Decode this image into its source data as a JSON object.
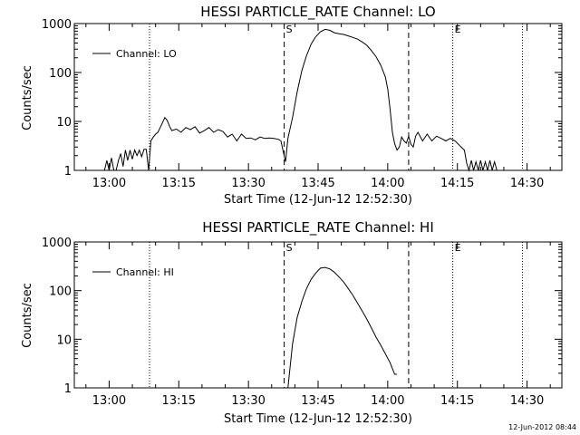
{
  "colors": {
    "background": "#ffffff",
    "foreground": "#000000"
  },
  "timestamp": "12-Jun-2012 08:44",
  "chart_data": [
    {
      "type": "line",
      "title": "HESSI PARTICLE_RATE Channel: LO",
      "xlabel": "Start Time (12-Jun-12 12:52:30)",
      "ylabel": "Counts/sec",
      "yscale": "log",
      "ylim": [
        1,
        1000
      ],
      "xlim_minutes_after_start": [
        0,
        105
      ],
      "x_ticks": [
        {
          "minute": 7.5,
          "label": "13:00"
        },
        {
          "minute": 22.5,
          "label": "13:15"
        },
        {
          "minute": 37.5,
          "label": "13:30"
        },
        {
          "minute": 52.5,
          "label": "13:45"
        },
        {
          "minute": 67.5,
          "label": "14:00"
        },
        {
          "minute": 82.5,
          "label": "14:15"
        },
        {
          "minute": 97.5,
          "label": "14:30"
        }
      ],
      "y_ticks": [
        {
          "value": 1,
          "label": "1"
        },
        {
          "value": 10,
          "label": "10"
        },
        {
          "value": 100,
          "label": "100"
        },
        {
          "value": 1000,
          "label": "1000"
        }
      ],
      "legend": {
        "label": "Channel: LO",
        "position": "top-left"
      },
      "markers": [
        {
          "label": "",
          "minute": 16.2,
          "style": "dotted"
        },
        {
          "label": "S",
          "minute": 45.2,
          "style": "dashed"
        },
        {
          "label": "",
          "minute": 72.0,
          "style": "dashed"
        },
        {
          "label": "E",
          "minute": 81.5,
          "style": "dotted"
        },
        {
          "label": "",
          "minute": 96.5,
          "style": "dotted"
        }
      ],
      "series": [
        {
          "name": "Channel: LO",
          "x": [
            6.5,
            7.0,
            7.5,
            8.0,
            8.5,
            9.0,
            9.5,
            10.0,
            10.5,
            11.0,
            11.5,
            12.0,
            12.5,
            13.0,
            13.5,
            14.0,
            14.5,
            15.0,
            15.5,
            16.0,
            16.5,
            17.0,
            17.5,
            18.0,
            18.5,
            19.0,
            19.5,
            20.0,
            20.5,
            21.0,
            22.0,
            23.0,
            24.0,
            25.0,
            26.0,
            27.0,
            28.0,
            29.0,
            30.0,
            31.0,
            32.0,
            33.0,
            34.0,
            35.0,
            36.0,
            37.0,
            38.0,
            39.0,
            40.0,
            41.0,
            42.0,
            43.0,
            44.0,
            44.5,
            45.0,
            45.5,
            46.0,
            47.0,
            48.0,
            49.0,
            50.0,
            51.0,
            52.0,
            53.0,
            54.0,
            55.0,
            56.0,
            57.0,
            58.0,
            59.0,
            60.0,
            61.0,
            62.0,
            63.0,
            64.0,
            65.0,
            66.0,
            67.0,
            67.5,
            68.0,
            68.5,
            69.0,
            69.5,
            70.0,
            70.5,
            71.0,
            71.5,
            72.0,
            72.5,
            73.0,
            73.5,
            74.0,
            75.0,
            76.0,
            77.0,
            78.0,
            79.0,
            80.0,
            81.0,
            82.0,
            83.0,
            84.0,
            84.5,
            85.0,
            85.5,
            86.0,
            86.5,
            87.0,
            87.5,
            88.0,
            88.5,
            89.0,
            89.5,
            90.0,
            90.5,
            91.0
          ],
          "values": [
            1,
            1.6,
            1,
            1.8,
            1,
            1,
            1.6,
            2.2,
            1.2,
            2.6,
            1.6,
            2.6,
            1.7,
            2.6,
            2.0,
            2.6,
            1.9,
            2.7,
            2.7,
            1.0,
            4.0,
            4.8,
            5.5,
            6.0,
            7.5,
            9.5,
            12.0,
            10.5,
            8.0,
            6.5,
            7.0,
            6.0,
            7.5,
            6.8,
            7.8,
            5.8,
            6.5,
            7.5,
            6.0,
            6.8,
            6.2,
            4.8,
            5.5,
            4.0,
            5.5,
            4.5,
            4.6,
            4.2,
            4.8,
            4.5,
            4.6,
            4.5,
            4.3,
            4.0,
            2.4,
            1.5,
            4.5,
            12,
            40,
            110,
            220,
            380,
            540,
            680,
            760,
            730,
            650,
            620,
            600,
            560,
            520,
            480,
            420,
            360,
            280,
            210,
            140,
            80,
            45,
            18,
            6.0,
            3.5,
            2.6,
            3.0,
            4.8,
            4.0,
            3.6,
            5.0,
            3.4,
            3.0,
            5.0,
            6.0,
            4.0,
            5.5,
            4.0,
            5.0,
            4.5,
            4.0,
            4.5,
            4.0,
            3.2,
            2.6,
            1.4,
            1.0,
            1.6,
            1.0,
            1.5,
            1.0,
            1.6,
            1.0,
            1.5,
            1.0,
            1.6,
            1.0,
            1.5,
            1.0
          ]
        }
      ]
    },
    {
      "type": "line",
      "title": "HESSI PARTICLE_RATE Channel: HI",
      "xlabel": "Start Time (12-Jun-12 12:52:30)",
      "ylabel": "Counts/sec",
      "yscale": "log",
      "ylim": [
        1,
        1000
      ],
      "xlim_minutes_after_start": [
        0,
        105
      ],
      "x_ticks": [
        {
          "minute": 7.5,
          "label": "13:00"
        },
        {
          "minute": 22.5,
          "label": "13:15"
        },
        {
          "minute": 37.5,
          "label": "13:30"
        },
        {
          "minute": 52.5,
          "label": "13:45"
        },
        {
          "minute": 67.5,
          "label": "14:00"
        },
        {
          "minute": 82.5,
          "label": "14:15"
        },
        {
          "minute": 97.5,
          "label": "14:30"
        }
      ],
      "y_ticks": [
        {
          "value": 1,
          "label": "1"
        },
        {
          "value": 10,
          "label": "10"
        },
        {
          "value": 100,
          "label": "100"
        },
        {
          "value": 1000,
          "label": "1000"
        }
      ],
      "legend": {
        "label": "Channel: HI",
        "position": "top-left"
      },
      "markers": [
        {
          "label": "",
          "minute": 16.2,
          "style": "dotted"
        },
        {
          "label": "S",
          "minute": 45.2,
          "style": "dashed"
        },
        {
          "label": "",
          "minute": 72.0,
          "style": "dashed"
        },
        {
          "label": "E",
          "minute": 81.5,
          "style": "dotted"
        },
        {
          "label": "",
          "minute": 96.5,
          "style": "dotted"
        }
      ],
      "series": [
        {
          "name": "Channel: HI",
          "x": [
            46.0,
            47.0,
            48.0,
            49.0,
            50.0,
            51.0,
            52.0,
            53.0,
            54.0,
            55.0,
            56.0,
            57.0,
            58.0,
            59.0,
            60.0,
            61.0,
            62.0,
            63.0,
            64.0,
            65.0,
            66.0,
            67.0,
            68.0,
            69.0,
            69.5
          ],
          "values": [
            1.0,
            8,
            28,
            60,
            110,
            170,
            230,
            290,
            300,
            280,
            240,
            190,
            150,
            110,
            80,
            55,
            38,
            26,
            17,
            11,
            7.5,
            5,
            3.3,
            1.9,
            1.9
          ]
        }
      ]
    }
  ]
}
